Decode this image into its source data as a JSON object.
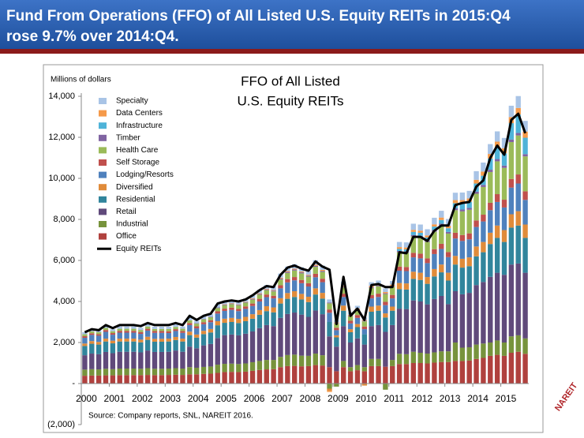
{
  "header": {
    "title": [
      "Fund From Operations (FFO) of All Listed U.S. Equity REITs in 2015:Q4",
      "rose 9.7% over 2014:Q4."
    ]
  },
  "chart_data": {
    "type": "bar",
    "stacked": true,
    "title": [
      "FFO of All Listed",
      "U.S. Equity REITs"
    ],
    "y_label": "Millions of dollars",
    "source": "Source: Company reports, SNL, NAREIT 2016.",
    "ylim": [
      -2000,
      14000
    ],
    "yticks": [
      {
        "value": 14000,
        "label": "14,000"
      },
      {
        "value": 12000,
        "label": "12,000"
      },
      {
        "value": 10000,
        "label": "10,000"
      },
      {
        "value": 8000,
        "label": "8,000"
      },
      {
        "value": 6000,
        "label": "6,000"
      },
      {
        "value": 4000,
        "label": "4,000"
      },
      {
        "value": 2000,
        "label": "2,000"
      },
      {
        "value": 0,
        "label": "-"
      },
      {
        "value": -2000,
        "label": "(2,000)"
      }
    ],
    "categories": [
      "2000",
      null,
      null,
      null,
      "2001",
      null,
      null,
      null,
      "2002",
      null,
      null,
      null,
      "2003",
      null,
      null,
      null,
      "2004",
      null,
      null,
      null,
      "2005",
      null,
      null,
      null,
      "2006",
      null,
      null,
      null,
      "2007",
      null,
      null,
      null,
      "2008",
      null,
      null,
      null,
      "2009",
      null,
      null,
      null,
      "2010",
      null,
      null,
      null,
      "2011",
      null,
      null,
      null,
      "2012",
      null,
      null,
      null,
      "2013",
      null,
      null,
      null,
      "2014",
      null,
      null,
      null,
      "2015",
      null,
      null,
      null
    ],
    "series": [
      {
        "name": "Office",
        "color": "#b0413e",
        "values": [
          380,
          390,
          390,
          400,
          400,
          410,
          410,
          410,
          410,
          420,
          410,
          410,
          420,
          430,
          420,
          450,
          450,
          470,
          480,
          520,
          560,
          570,
          560,
          580,
          620,
          660,
          690,
          700,
          800,
          850,
          860,
          840,
          850,
          900,
          880,
          800,
          600,
          800,
          600,
          650,
          600,
          850,
          850,
          820,
          850,
          950,
          950,
          1000,
          1000,
          980,
          1020,
          1050,
          1050,
          1100,
          1100,
          1120,
          1200,
          1250,
          1350,
          1400,
          1350,
          1500,
          1550,
          1450
        ]
      },
      {
        "name": "Industrial",
        "color": "#77933c",
        "values": [
          300,
          310,
          300,
          320,
          300,
          320,
          320,
          320,
          310,
          330,
          310,
          310,
          310,
          320,
          310,
          350,
          320,
          340,
          350,
          400,
          400,
          400,
          390,
          400,
          420,
          440,
          460,
          450,
          500,
          540,
          550,
          520,
          500,
          560,
          500,
          -250,
          -150,
          300,
          200,
          250,
          200,
          350,
          350,
          -300,
          300,
          500,
          480,
          550,
          500,
          480,
          500,
          520,
          520,
          900,
          650,
          650,
          700,
          700,
          650,
          700,
          650,
          800,
          800,
          750
        ]
      },
      {
        "name": "Retail",
        "color": "#604a7b",
        "values": [
          700,
          760,
          740,
          820,
          780,
          820,
          820,
          820,
          800,
          860,
          820,
          820,
          820,
          860,
          820,
          1000,
          950,
          1050,
          1100,
          1300,
          1400,
          1420,
          1400,
          1450,
          1500,
          1600,
          1700,
          1650,
          1900,
          2000,
          2050,
          2000,
          1900,
          2100,
          2000,
          1500,
          1200,
          1700,
          1200,
          1300,
          1100,
          1600,
          1650,
          1700,
          1700,
          2200,
          2200,
          2500,
          2500,
          2400,
          2600,
          2700,
          2300,
          2500,
          2600,
          2650,
          2900,
          3000,
          3200,
          3300,
          3300,
          3500,
          3500,
          3200
        ]
      },
      {
        "name": "Residential",
        "color": "#31859c",
        "values": [
          450,
          480,
          470,
          510,
          480,
          500,
          500,
          500,
          490,
          520,
          500,
          500,
          500,
          510,
          500,
          560,
          520,
          550,
          560,
          620,
          600,
          610,
          600,
          610,
          620,
          650,
          680,
          670,
          700,
          740,
          760,
          740,
          720,
          780,
          760,
          700,
          450,
          750,
          500,
          550,
          500,
          700,
          700,
          700,
          700,
          950,
          950,
          1050,
          1050,
          1000,
          1100,
          1150,
          1150,
          1300,
          1300,
          1300,
          1400,
          1450,
          1600,
          1700,
          1600,
          1800,
          1850,
          1700
        ]
      },
      {
        "name": "Diversified",
        "color": "#e08b3a",
        "values": [
          120,
          130,
          130,
          140,
          130,
          140,
          140,
          140,
          130,
          150,
          140,
          140,
          140,
          150,
          140,
          170,
          150,
          160,
          170,
          200,
          200,
          200,
          200,
          210,
          220,
          230,
          240,
          240,
          260,
          280,
          280,
          270,
          260,
          300,
          280,
          -100,
          100,
          250,
          150,
          150,
          -100,
          250,
          250,
          200,
          200,
          300,
          300,
          350,
          350,
          330,
          360,
          380,
          380,
          420,
          430,
          430,
          480,
          500,
          550,
          600,
          580,
          650,
          700,
          650
        ]
      },
      {
        "name": "Lodging/Resorts",
        "color": "#4f81bd",
        "values": [
          280,
          300,
          300,
          330,
          290,
          290,
          290,
          290,
          280,
          300,
          290,
          290,
          270,
          290,
          280,
          320,
          300,
          320,
          330,
          370,
          380,
          390,
          380,
          390,
          400,
          420,
          440,
          440,
          480,
          520,
          530,
          520,
          500,
          540,
          520,
          450,
          250,
          420,
          280,
          300,
          250,
          400,
          420,
          400,
          400,
          600,
          600,
          700,
          700,
          680,
          730,
          760,
          760,
          850,
          870,
          880,
          950,
          1000,
          1100,
          1150,
          1100,
          1300,
          1350,
          1200
        ]
      },
      {
        "name": "Self Storage",
        "color": "#c0504d",
        "values": [
          80,
          80,
          80,
          90,
          80,
          90,
          90,
          90,
          90,
          90,
          90,
          90,
          90,
          90,
          90,
          100,
          100,
          100,
          100,
          110,
          110,
          110,
          110,
          120,
          120,
          130,
          130,
          130,
          150,
          160,
          160,
          160,
          160,
          170,
          170,
          160,
          120,
          160,
          130,
          140,
          130,
          160,
          160,
          160,
          170,
          200,
          200,
          220,
          230,
          230,
          240,
          250,
          250,
          280,
          290,
          290,
          320,
          330,
          360,
          380,
          380,
          420,
          440,
          420
        ]
      },
      {
        "name": "Health Care",
        "color": "#9bbb59",
        "values": [
          90,
          90,
          90,
          100,
          90,
          100,
          100,
          100,
          100,
          110,
          100,
          100,
          110,
          110,
          110,
          130,
          130,
          140,
          140,
          160,
          170,
          170,
          170,
          180,
          190,
          200,
          210,
          210,
          280,
          300,
          320,
          320,
          320,
          340,
          330,
          300,
          200,
          300,
          220,
          250,
          250,
          350,
          360,
          380,
          400,
          700,
          700,
          800,
          800,
          800,
          850,
          900,
          900,
          1100,
          1150,
          1150,
          1300,
          1350,
          1500,
          1600,
          1550,
          1800,
          1900,
          1700
        ]
      },
      {
        "name": "Timber",
        "color": "#8064a2",
        "values": [
          0,
          0,
          0,
          0,
          0,
          0,
          0,
          0,
          0,
          0,
          0,
          0,
          0,
          0,
          0,
          0,
          20,
          20,
          20,
          30,
          30,
          30,
          30,
          30,
          40,
          40,
          40,
          40,
          50,
          50,
          50,
          50,
          50,
          50,
          50,
          40,
          30,
          40,
          30,
          30,
          30,
          40,
          40,
          40,
          40,
          60,
          60,
          70,
          70,
          70,
          80,
          80,
          80,
          90,
          90,
          90,
          100,
          100,
          110,
          110,
          110,
          120,
          120,
          110
        ]
      },
      {
        "name": "Infrastructure",
        "color": "#4fb3d8",
        "values": [
          0,
          0,
          0,
          0,
          0,
          0,
          0,
          0,
          0,
          0,
          0,
          0,
          0,
          0,
          0,
          0,
          0,
          0,
          0,
          0,
          0,
          0,
          0,
          0,
          0,
          0,
          0,
          0,
          0,
          0,
          0,
          0,
          0,
          0,
          0,
          0,
          0,
          0,
          0,
          0,
          0,
          0,
          0,
          0,
          0,
          100,
          100,
          150,
          150,
          150,
          170,
          180,
          180,
          250,
          300,
          300,
          400,
          450,
          550,
          600,
          600,
          800,
          900,
          800
        ]
      },
      {
        "name": "Data Centers",
        "color": "#f59a4a",
        "values": [
          0,
          0,
          0,
          0,
          0,
          0,
          0,
          0,
          0,
          0,
          0,
          0,
          0,
          0,
          0,
          0,
          0,
          0,
          0,
          0,
          20,
          20,
          20,
          20,
          30,
          30,
          30,
          30,
          40,
          40,
          40,
          40,
          40,
          50,
          50,
          -60,
          30,
          50,
          40,
          40,
          40,
          60,
          60,
          60,
          60,
          90,
          90,
          100,
          100,
          100,
          110,
          120,
          120,
          150,
          160,
          160,
          180,
          200,
          220,
          250,
          250,
          300,
          320,
          300
        ]
      },
      {
        "name": "Specialty",
        "color": "#a9c4e6",
        "values": [
          100,
          100,
          100,
          110,
          100,
          110,
          110,
          110,
          110,
          120,
          110,
          110,
          110,
          120,
          110,
          130,
          120,
          130,
          130,
          150,
          150,
          150,
          150,
          150,
          160,
          170,
          180,
          180,
          200,
          220,
          220,
          210,
          200,
          220,
          210,
          150,
          100,
          200,
          120,
          130,
          120,
          180,
          180,
          180,
          180,
          250,
          250,
          300,
          300,
          300,
          320,
          330,
          330,
          360,
          370,
          370,
          420,
          440,
          480,
          500,
          500,
          550,
          580,
          520
        ]
      }
    ],
    "line": {
      "name": "Equity REITs",
      "color": "#000000",
      "values": [
        2500,
        2650,
        2600,
        2850,
        2700,
        2850,
        2850,
        2850,
        2800,
        2950,
        2850,
        2850,
        2850,
        2950,
        2850,
        3300,
        3100,
        3300,
        3400,
        3900,
        4000,
        4050,
        4000,
        4100,
        4300,
        4550,
        4750,
        4700,
        5300,
        5650,
        5750,
        5600,
        5500,
        5950,
        5700,
        5550,
        2900,
        5200,
        3300,
        3650,
        3100,
        4800,
        4850,
        4700,
        4700,
        6400,
        6350,
        7150,
        7150,
        6950,
        7450,
        7700,
        7700,
        8700,
        8800,
        8850,
        9600,
        9900,
        11000,
        11600,
        11150,
        12850,
        13150,
        12200
      ]
    }
  },
  "logo": "NAREIT"
}
